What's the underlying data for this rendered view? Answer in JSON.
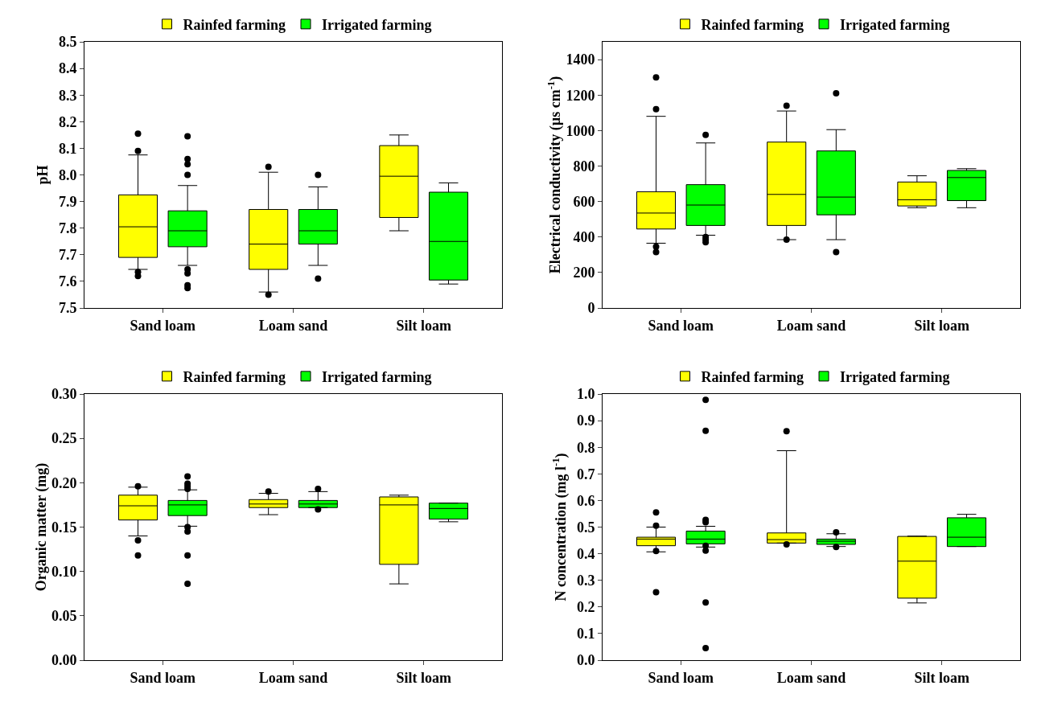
{
  "chart_data": [
    {
      "type": "box",
      "ylabel": "pH",
      "categories": [
        "Sand loam",
        "Loam sand",
        "Silt loam"
      ],
      "ylim": [
        7.5,
        8.5
      ],
      "yticks": [
        7.5,
        7.6,
        7.7,
        7.8,
        7.9,
        {
          "value": 8,
          "label": "8.0"
        },
        8.1,
        8.2,
        8.3,
        8.4,
        8.5
      ],
      "legend": "top",
      "grid": false,
      "marker": "circle",
      "series": [
        {
          "name": "Rainfed farming",
          "color": "#ffff00",
          "boxes": [
            {
              "low": 7.645,
              "q1": 7.69,
              "median": 7.805,
              "q3": 7.925,
              "high": 8.075,
              "outliers": [
                7.62,
                7.635,
                8.09,
                8.155
              ]
            },
            {
              "low": 7.56,
              "q1": 7.645,
              "median": 7.74,
              "q3": 7.87,
              "high": 8.01,
              "outliers": [
                7.55,
                8.03
              ]
            },
            {
              "low": 7.79,
              "q1": 7.84,
              "median": 7.995,
              "q3": 8.11,
              "high": 8.15
            }
          ]
        },
        {
          "name": "Irrigated farming",
          "color": "#00ff00",
          "boxes": [
            {
              "low": 7.66,
              "q1": 7.73,
              "median": 7.79,
              "q3": 7.865,
              "high": 7.96,
              "outliers": [
                7.575,
                7.585,
                7.63,
                7.645,
                8.0,
                8.04,
                8.06,
                8.145
              ]
            },
            {
              "low": 7.66,
              "q1": 7.74,
              "median": 7.79,
              "q3": 7.87,
              "high": 7.955,
              "outliers": [
                7.61,
                8.0
              ]
            },
            {
              "low": 7.59,
              "q1": 7.605,
              "median": 7.75,
              "q3": 7.935,
              "high": 7.97
            }
          ]
        }
      ]
    },
    {
      "type": "box",
      "ylabel": "Electrical conductivity (µs cm$^{-1}$)",
      "categories": [
        "Sand loam",
        "Loam sand",
        "Silt loam"
      ],
      "ylim": [
        0,
        1500
      ],
      "yticks": [
        0,
        200,
        400,
        600,
        800,
        1000,
        1200,
        1400
      ],
      "legend": "top",
      "grid": false,
      "marker": "circle",
      "series": [
        {
          "name": "Rainfed farming",
          "color": "#ffff00",
          "boxes": [
            {
              "low": 365,
              "q1": 445,
              "median": 535,
              "q3": 655,
              "high": 1080,
              "outliers": [
                315,
                345,
                1120,
                1300
              ]
            },
            {
              "low": 385,
              "q1": 465,
              "median": 640,
              "q3": 935,
              "high": 1110,
              "outliers": [
                385,
                1140
              ]
            },
            {
              "low": 565,
              "q1": 575,
              "median": 610,
              "q3": 710,
              "high": 745
            }
          ]
        },
        {
          "name": "Irrigated farming",
          "color": "#00ff00",
          "boxes": [
            {
              "low": 410,
              "q1": 465,
              "median": 580,
              "q3": 695,
              "high": 930,
              "outliers": [
                370,
                385,
                400,
                975
              ]
            },
            {
              "low": 385,
              "q1": 525,
              "median": 625,
              "q3": 885,
              "high": 1005,
              "outliers": [
                315,
                1210
              ]
            },
            {
              "low": 565,
              "q1": 605,
              "median": 735,
              "q3": 775,
              "high": 785
            }
          ]
        }
      ]
    },
    {
      "type": "box",
      "ylabel": "Organic matter (mg)",
      "categories": [
        "Sand loam",
        "Loam sand",
        "Silt loam"
      ],
      "ylim": [
        0,
        0.3
      ],
      "yticks": [
        {
          "value": 0,
          "label": "0.00"
        },
        {
          "value": 0.05,
          "label": "0.05"
        },
        {
          "value": 0.1,
          "label": "0.10"
        },
        {
          "value": 0.15,
          "label": "0.15"
        },
        {
          "value": 0.2,
          "label": "0.20"
        },
        {
          "value": 0.25,
          "label": "0.25"
        },
        {
          "value": 0.3,
          "label": "0.30"
        }
      ],
      "legend": "top",
      "grid": false,
      "marker": "circle",
      "series": [
        {
          "name": "Rainfed farming",
          "color": "#ffff00",
          "boxes": [
            {
              "low": 0.14,
              "q1": 0.158,
              "median": 0.174,
              "q3": 0.186,
              "high": 0.195,
              "outliers": [
                0.118,
                0.135,
                0.196
              ]
            },
            {
              "low": 0.164,
              "q1": 0.172,
              "median": 0.176,
              "q3": 0.181,
              "high": 0.188,
              "outliers": [
                0.19
              ]
            },
            {
              "low": 0.086,
              "q1": 0.108,
              "median": 0.175,
              "q3": 0.184,
              "high": 0.186
            }
          ]
        },
        {
          "name": "Irrigated farming",
          "color": "#00ff00",
          "boxes": [
            {
              "low": 0.151,
              "q1": 0.163,
              "median": 0.175,
              "q3": 0.18,
              "high": 0.192,
              "outliers": [
                0.086,
                0.118,
                0.145,
                0.15,
                0.193,
                0.196,
                0.199,
                0.207
              ]
            },
            {
              "low": 0.172,
              "q1": 0.172,
              "median": 0.176,
              "q3": 0.18,
              "high": 0.19,
              "outliers": [
                0.17,
                0.193
              ]
            },
            {
              "low": 0.156,
              "q1": 0.159,
              "median": 0.171,
              "q3": 0.177,
              "high": 0.177
            }
          ]
        }
      ]
    },
    {
      "type": "box",
      "ylabel": "N concentration (mg l$^{-1}$)",
      "categories": [
        "Sand loam",
        "Loam sand",
        "Silt loam"
      ],
      "ylim": [
        0,
        1
      ],
      "yticks": [
        {
          "value": 0,
          "label": "0.0"
        },
        0.1,
        0.2,
        0.3,
        0.4,
        0.5,
        0.6,
        0.7,
        0.8,
        0.9,
        {
          "value": 1,
          "label": "1.0"
        }
      ],
      "legend": "top",
      "grid": false,
      "marker": "circle",
      "series": [
        {
          "name": "Rainfed farming",
          "color": "#ffff00",
          "boxes": [
            {
              "low": 0.407,
              "q1": 0.43,
              "median": 0.455,
              "q3": 0.462,
              "high": 0.5,
              "outliers": [
                0.255,
                0.41,
                0.505,
                0.555
              ]
            },
            {
              "low": 0.44,
              "q1": 0.44,
              "median": 0.453,
              "q3": 0.478,
              "high": 0.787,
              "outliers": [
                0.435,
                0.86
              ]
            },
            {
              "low": 0.215,
              "q1": 0.233,
              "median": 0.372,
              "q3": 0.465,
              "high": 0.466
            }
          ]
        },
        {
          "name": "Irrigated farming",
          "color": "#00ff00",
          "boxes": [
            {
              "low": 0.425,
              "q1": 0.437,
              "median": 0.455,
              "q3": 0.485,
              "high": 0.503,
              "outliers": [
                0.045,
                0.217,
                0.412,
                0.43,
                0.518,
                0.527,
                0.862,
                0.978
              ]
            },
            {
              "low": 0.427,
              "q1": 0.435,
              "median": 0.447,
              "q3": 0.455,
              "high": 0.475,
              "outliers": [
                0.425,
                0.48
              ]
            },
            {
              "low": 0.427,
              "q1": 0.427,
              "median": 0.462,
              "q3": 0.535,
              "high": 0.548
            }
          ]
        }
      ]
    }
  ]
}
